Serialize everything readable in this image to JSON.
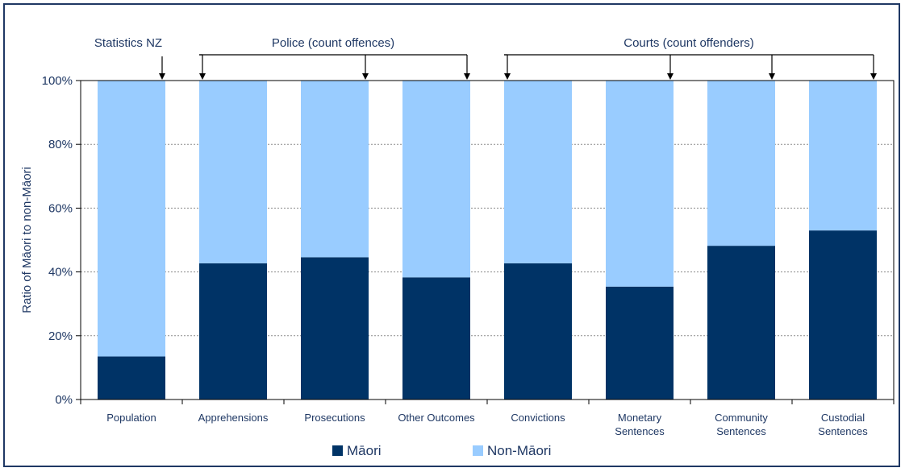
{
  "chart_data": {
    "type": "bar",
    "stacked": true,
    "categories": [
      [
        "Population"
      ],
      [
        "Apprehensions"
      ],
      [
        "Prosecutions"
      ],
      [
        "Other Outcomes"
      ],
      [
        "Convictions"
      ],
      [
        "Monetary",
        "Sentences"
      ],
      [
        "Community",
        "Sentences"
      ],
      [
        "Custodial",
        "Sentences"
      ]
    ],
    "series": [
      {
        "name": "Māori",
        "color": "#003366",
        "values": [
          13.5,
          42.7,
          44.6,
          38.3,
          42.7,
          35.4,
          48.2,
          53.0
        ]
      },
      {
        "name": "Non-Māori",
        "color": "#99ccff",
        "values": [
          86.5,
          57.3,
          55.4,
          61.7,
          57.3,
          64.6,
          51.8,
          47.0
        ]
      }
    ],
    "ylabel": "Ratio of Māori to non-Māori",
    "ylim": [
      0,
      100
    ],
    "yticks": [
      "0%",
      "20%",
      "40%",
      "60%",
      "80%",
      "100%"
    ],
    "ytick_values": [
      0,
      20,
      40,
      60,
      80,
      100
    ],
    "grid": true,
    "legend": "bottom",
    "annotations": [
      {
        "label": "Statistics NZ",
        "categories": [
          0
        ]
      },
      {
        "label": "Police (count offences)",
        "categories": [
          1,
          2,
          3
        ]
      },
      {
        "label": "Courts (count offenders)",
        "categories": [
          4,
          5,
          6,
          7
        ]
      }
    ]
  }
}
